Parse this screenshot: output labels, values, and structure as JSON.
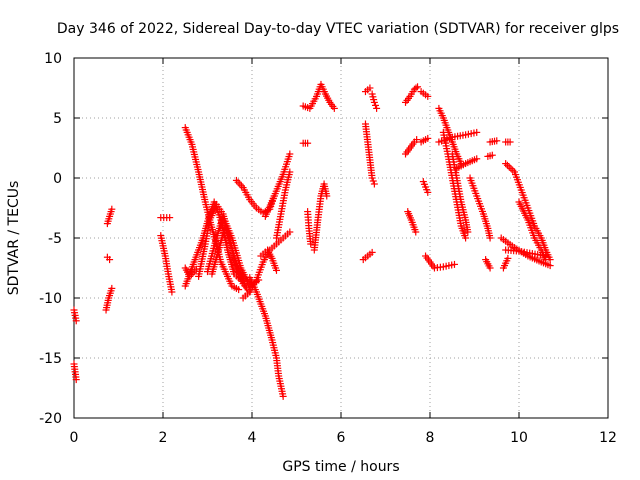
{
  "colors": {
    "series": "#ff0000",
    "grid": "#a0a0a0",
    "axis": "#000000"
  },
  "chart_data": {
    "type": "scatter",
    "marker": "plus",
    "title": "Day 346 of 2022, Sidereal Day-to-day VTEC variation (SDTVAR) for receiver glps",
    "xlabel": "GPS time / hours",
    "ylabel": "SDTVAR / TECUs",
    "xlim": [
      0,
      12
    ],
    "ylim": [
      -20,
      10
    ],
    "xticks": [
      0,
      2,
      4,
      6,
      8,
      10,
      12
    ],
    "yticks": [
      -20,
      -15,
      -10,
      -5,
      0,
      5,
      10
    ],
    "grid": true,
    "segments": [
      [
        [
          0.0,
          -11.0
        ],
        [
          0.05,
          -11.9
        ]
      ],
      [
        [
          0.0,
          -15.5
        ],
        [
          0.05,
          -16.8
        ]
      ],
      [
        [
          0.75,
          -3.8
        ],
        [
          0.85,
          -2.6
        ]
      ],
      [
        [
          0.75,
          -6.6
        ],
        [
          0.8,
          -6.8
        ]
      ],
      [
        [
          0.72,
          -11.0
        ],
        [
          0.78,
          -10.0
        ],
        [
          0.85,
          -9.2
        ]
      ],
      [
        [
          1.95,
          -3.3
        ],
        [
          2.15,
          -3.3
        ]
      ],
      [
        [
          1.95,
          -4.8
        ],
        [
          2.05,
          -6.5
        ],
        [
          2.12,
          -8.0
        ],
        [
          2.2,
          -9.5
        ]
      ],
      [
        [
          2.5,
          -7.5
        ],
        [
          2.6,
          -8.2
        ],
        [
          2.75,
          -7.6
        ]
      ],
      [
        [
          2.5,
          4.2
        ],
        [
          2.65,
          2.8
        ],
        [
          2.8,
          0.5
        ],
        [
          2.95,
          -2.0
        ],
        [
          3.05,
          -3.5
        ],
        [
          3.2,
          -5.5
        ],
        [
          3.3,
          -7.0
        ],
        [
          3.45,
          -8.2
        ],
        [
          3.55,
          -9.0
        ],
        [
          3.7,
          -9.3
        ]
      ],
      [
        [
          2.5,
          -9.0
        ],
        [
          2.7,
          -7.0
        ],
        [
          2.9,
          -5.0
        ],
        [
          3.05,
          -3.0
        ],
        [
          3.15,
          -2.0
        ],
        [
          3.3,
          -3.5
        ],
        [
          3.45,
          -6.0
        ],
        [
          3.6,
          -8.0
        ],
        [
          3.75,
          -8.5
        ]
      ],
      [
        [
          2.8,
          -8.2
        ],
        [
          2.95,
          -5.5
        ],
        [
          3.05,
          -3.5
        ],
        [
          3.2,
          -2.2
        ],
        [
          3.35,
          -3.0
        ],
        [
          3.5,
          -5.0
        ],
        [
          3.65,
          -7.5
        ],
        [
          3.8,
          -8.8
        ],
        [
          3.95,
          -9.5
        ]
      ],
      [
        [
          3.0,
          -7.8
        ],
        [
          3.2,
          -5.0
        ],
        [
          3.35,
          -3.2
        ],
        [
          3.55,
          -5.0
        ],
        [
          3.75,
          -7.5
        ],
        [
          3.95,
          -9.0
        ],
        [
          4.15,
          -8.5
        ]
      ],
      [
        [
          3.1,
          -8.0
        ],
        [
          3.25,
          -6.0
        ],
        [
          3.4,
          -4.0
        ],
        [
          3.6,
          -6.5
        ],
        [
          3.85,
          -9.0
        ]
      ],
      [
        [
          3.65,
          -0.2
        ],
        [
          3.8,
          -0.8
        ],
        [
          3.95,
          -1.8
        ],
        [
          4.1,
          -2.5
        ],
        [
          4.25,
          -2.9
        ],
        [
          4.4,
          -2.6
        ],
        [
          4.5,
          -1.5
        ]
      ],
      [
        [
          3.8,
          -10.0
        ],
        [
          3.95,
          -9.5
        ],
        [
          4.1,
          -8.5
        ],
        [
          4.25,
          -7.0
        ],
        [
          4.4,
          -6.0
        ],
        [
          4.55,
          -5.5
        ],
        [
          4.7,
          -5.0
        ],
        [
          4.85,
          -4.5
        ]
      ],
      [
        [
          3.95,
          -8.3
        ],
        [
          4.1,
          -9.5
        ],
        [
          4.3,
          -11.5
        ],
        [
          4.45,
          -13.5
        ],
        [
          4.55,
          -15.0
        ],
        [
          4.6,
          -16.5
        ],
        [
          4.7,
          -18.2
        ]
      ],
      [
        [
          4.2,
          -6.5
        ],
        [
          4.35,
          -6.0
        ],
        [
          4.45,
          -6.7
        ],
        [
          4.55,
          -7.7
        ]
      ],
      [
        [
          4.3,
          -3.2
        ],
        [
          4.5,
          -1.5
        ],
        [
          4.7,
          0.3
        ],
        [
          4.85,
          2.0
        ]
      ],
      [
        [
          4.55,
          -5.0
        ],
        [
          4.65,
          -3.0
        ],
        [
          4.75,
          -1.0
        ],
        [
          4.85,
          0.5
        ]
      ],
      [
        [
          5.15,
          2.9
        ],
        [
          5.25,
          2.9
        ]
      ],
      [
        [
          5.25,
          -2.8
        ],
        [
          5.28,
          -4.2
        ],
        [
          5.32,
          -5.5
        ]
      ],
      [
        [
          5.4,
          -6.0
        ],
        [
          5.48,
          -3.5
        ],
        [
          5.55,
          -1.5
        ],
        [
          5.62,
          -0.5
        ],
        [
          5.68,
          -1.5
        ]
      ],
      [
        [
          5.15,
          6.0
        ],
        [
          5.3,
          5.8
        ],
        [
          5.45,
          6.8
        ],
        [
          5.55,
          7.8
        ],
        [
          5.65,
          7.0
        ],
        [
          5.75,
          6.3
        ],
        [
          5.85,
          5.8
        ]
      ],
      [
        [
          6.55,
          7.2
        ],
        [
          6.65,
          7.5
        ]
      ],
      [
        [
          6.7,
          7.0
        ],
        [
          6.75,
          6.3
        ],
        [
          6.8,
          5.8
        ]
      ],
      [
        [
          6.55,
          4.5
        ],
        [
          6.6,
          3.0
        ],
        [
          6.65,
          1.5
        ],
        [
          6.7,
          0.0
        ],
        [
          6.75,
          -0.5
        ]
      ],
      [
        [
          6.5,
          -6.8
        ],
        [
          6.6,
          -6.5
        ],
        [
          6.7,
          -6.2
        ]
      ],
      [
        [
          7.45,
          6.3
        ],
        [
          7.55,
          6.8
        ],
        [
          7.65,
          7.4
        ],
        [
          7.72,
          7.6
        ]
      ],
      [
        [
          7.45,
          2.0
        ],
        [
          7.55,
          2.5
        ],
        [
          7.65,
          3.0
        ],
        [
          7.7,
          3.2
        ]
      ],
      [
        [
          7.5,
          -2.8
        ],
        [
          7.58,
          -3.5
        ],
        [
          7.68,
          -4.5
        ]
      ],
      [
        [
          7.8,
          7.2
        ],
        [
          7.95,
          6.8
        ]
      ],
      [
        [
          7.8,
          3.0
        ],
        [
          7.95,
          3.3
        ]
      ],
      [
        [
          7.85,
          -0.3
        ],
        [
          7.95,
          -1.2
        ]
      ],
      [
        [
          7.9,
          -6.5
        ],
        [
          8.1,
          -7.5
        ],
        [
          8.3,
          -7.4
        ],
        [
          8.55,
          -7.2
        ]
      ],
      [
        [
          8.2,
          5.8
        ],
        [
          8.3,
          5.0
        ],
        [
          8.4,
          4.0
        ],
        [
          8.5,
          3.0
        ],
        [
          8.6,
          2.0
        ],
        [
          8.7,
          1.2
        ]
      ],
      [
        [
          8.2,
          3.0
        ],
        [
          8.5,
          3.4
        ],
        [
          8.8,
          3.6
        ],
        [
          9.05,
          3.8
        ]
      ],
      [
        [
          8.3,
          3.8
        ],
        [
          8.4,
          2.0
        ],
        [
          8.5,
          0.0
        ],
        [
          8.6,
          -2.0
        ],
        [
          8.7,
          -4.0
        ],
        [
          8.8,
          -5.0
        ]
      ],
      [
        [
          8.5,
          2.0
        ],
        [
          8.6,
          0.0
        ],
        [
          8.7,
          -2.0
        ],
        [
          8.8,
          -3.5
        ],
        [
          8.85,
          -4.5
        ]
      ],
      [
        [
          8.6,
          0.8
        ],
        [
          8.8,
          1.2
        ],
        [
          9.05,
          1.6
        ]
      ],
      [
        [
          8.9,
          0.0
        ],
        [
          9.05,
          -1.5
        ],
        [
          9.2,
          -3.0
        ],
        [
          9.3,
          -4.2
        ],
        [
          9.35,
          -5.0
        ]
      ],
      [
        [
          9.3,
          1.8
        ],
        [
          9.4,
          1.9
        ]
      ],
      [
        [
          9.25,
          -6.8
        ],
        [
          9.35,
          -7.5
        ]
      ],
      [
        [
          9.65,
          -7.5
        ],
        [
          9.75,
          -6.7
        ]
      ],
      [
        [
          9.35,
          3.0
        ],
        [
          9.5,
          3.1
        ]
      ],
      [
        [
          9.7,
          3.0
        ],
        [
          9.8,
          3.0
        ]
      ],
      [
        [
          9.6,
          -5.0
        ],
        [
          9.9,
          -5.8
        ],
        [
          10.2,
          -6.5
        ],
        [
          10.5,
          -7.0
        ],
        [
          10.7,
          -7.3
        ]
      ],
      [
        [
          9.7,
          -6.0
        ],
        [
          10.0,
          -6.1
        ],
        [
          10.3,
          -6.3
        ],
        [
          10.6,
          -6.5
        ]
      ],
      [
        [
          9.7,
          1.2
        ],
        [
          9.9,
          0.5
        ],
        [
          10.05,
          -1.0
        ],
        [
          10.2,
          -2.5
        ],
        [
          10.35,
          -4.0
        ],
        [
          10.5,
          -5.0
        ],
        [
          10.6,
          -6.0
        ],
        [
          10.7,
          -6.8
        ]
      ],
      [
        [
          10.0,
          -2.0
        ],
        [
          10.2,
          -3.5
        ],
        [
          10.35,
          -5.0
        ],
        [
          10.5,
          -6.0
        ],
        [
          10.6,
          -6.8
        ]
      ]
    ]
  }
}
